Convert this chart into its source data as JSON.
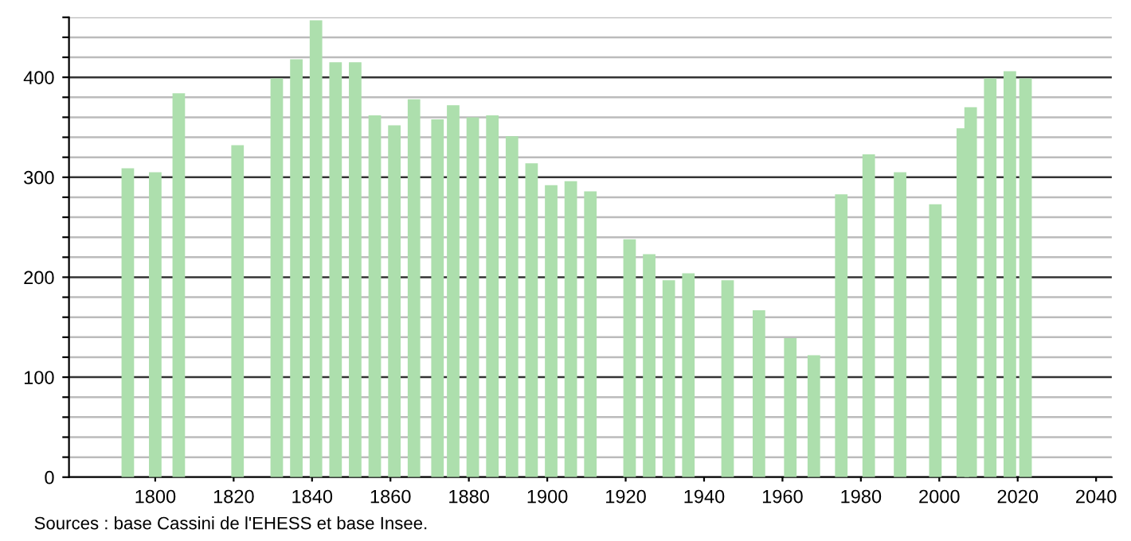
{
  "chart_data": {
    "type": "bar",
    "color": "#addfad",
    "x": [
      1793,
      1800,
      1806,
      1821,
      1831,
      1836,
      1841,
      1846,
      1851,
      1856,
      1861,
      1866,
      1872,
      1876,
      1881,
      1886,
      1891,
      1896,
      1901,
      1906,
      1911,
      1921,
      1926,
      1931,
      1936,
      1946,
      1954,
      1962,
      1968,
      1975,
      1982,
      1990,
      1999,
      2006,
      2008,
      2013,
      2018,
      2022
    ],
    "values": [
      309,
      305,
      384,
      332,
      399,
      418,
      457,
      415,
      415,
      362,
      352,
      378,
      358,
      372,
      360,
      362,
      341,
      314,
      292,
      296,
      286,
      238,
      223,
      197,
      204,
      197,
      167,
      139,
      122,
      283,
      323,
      305,
      273,
      349,
      370,
      399,
      406,
      399
    ],
    "xlim": [
      1778,
      2044
    ],
    "xticks": [
      1800,
      1820,
      1840,
      1860,
      1880,
      1900,
      1920,
      1940,
      1960,
      1980,
      2000,
      2020,
      2040
    ],
    "ylim": [
      0,
      460
    ],
    "yticks": [
      0,
      {
        "value": 20,
        "label": null
      },
      {
        "value": 40,
        "label": null
      },
      {
        "value": 60,
        "label": null
      },
      {
        "value": 80,
        "label": null
      },
      100,
      {
        "value": 120,
        "label": null
      },
      {
        "value": 140,
        "label": null
      },
      {
        "value": 160,
        "label": null
      },
      {
        "value": 180,
        "label": null
      },
      200,
      {
        "value": 220,
        "label": null
      },
      {
        "value": 240,
        "label": null
      },
      {
        "value": 260,
        "label": null
      },
      {
        "value": 280,
        "label": null
      },
      300,
      {
        "value": 320,
        "label": null
      },
      {
        "value": 340,
        "label": null
      },
      {
        "value": 360,
        "label": null
      },
      {
        "value": 380,
        "label": null
      },
      400,
      {
        "value": 420,
        "label": null
      },
      {
        "value": 440,
        "label": null
      },
      {
        "value": 460,
        "label": null
      }
    ],
    "grid": "y",
    "annotations": [
      "Sources : base Cassini de l'EHESS et base Insee."
    ]
  }
}
